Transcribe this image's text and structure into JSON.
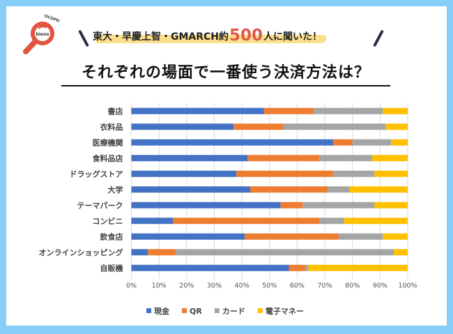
{
  "header": {
    "logo_text_top": "\\SCOPE/",
    "logo_text_inner": "bieno",
    "subtitle_pre": "東大・早慶上智・GMARCH約",
    "subtitle_number": "500",
    "subtitle_post": "人に聞いた！",
    "title": "それぞれの場面で一番使う決済方法は？"
  },
  "chart_data": {
    "type": "bar",
    "orientation": "horizontal",
    "stacked": "percent",
    "title": "それぞれの場面で一番使う決済方法は？",
    "xlabel": "",
    "ylabel": "",
    "xlim": [
      0,
      100
    ],
    "x_ticks": [
      "0%",
      "10%",
      "20%",
      "30%",
      "40%",
      "50%",
      "60%",
      "70%",
      "80%",
      "90%",
      "100%"
    ],
    "grid": "vertical",
    "legend_position": "bottom",
    "categories": [
      "書店",
      "衣料品",
      "医療機関",
      "食料品店",
      "ドラッグストア",
      "大学",
      "テーマパーク",
      "コンビニ",
      "飲食店",
      "オンラインショッピング",
      "自販機"
    ],
    "series": [
      {
        "name": "現金",
        "color": "#4472c4",
        "values": [
          48,
          37,
          73,
          42,
          38,
          43,
          54,
          15,
          41,
          6,
          57
        ]
      },
      {
        "name": "QR",
        "color": "#ed7d31",
        "values": [
          18,
          18,
          7,
          26,
          35,
          28,
          8,
          53,
          34,
          10,
          6
        ]
      },
      {
        "name": "カード",
        "color": "#a5a5a5",
        "values": [
          25,
          37,
          14,
          19,
          15,
          8,
          26,
          9,
          16,
          79,
          1
        ]
      },
      {
        "name": "電子マネー",
        "color": "#ffc000",
        "values": [
          9,
          8,
          6,
          13,
          12,
          21,
          12,
          23,
          9,
          5,
          36
        ]
      }
    ]
  }
}
